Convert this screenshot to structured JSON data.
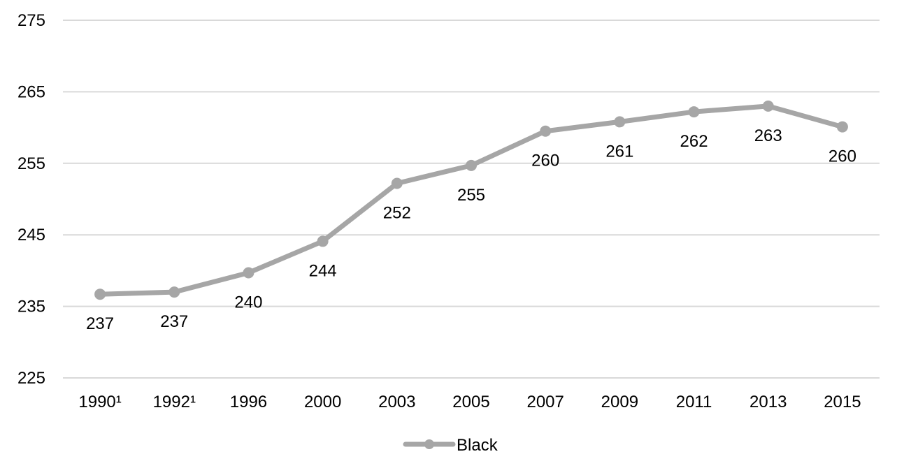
{
  "chart_data": {
    "type": "line",
    "categories": [
      "1990¹",
      "1992¹",
      "1996",
      "2000",
      "2003",
      "2005",
      "2007",
      "2009",
      "2011",
      "2013",
      "2015"
    ],
    "series": [
      {
        "name": "Black",
        "values": [
          236.7,
          237.0,
          239.7,
          244.1,
          252.2,
          254.7,
          259.5,
          260.8,
          262.2,
          263.0,
          260.1
        ],
        "labels": [
          "237",
          "237",
          "240",
          "244",
          "252",
          "255",
          "260",
          "261",
          "262",
          "263",
          "260"
        ],
        "color": "#a6a6a6"
      }
    ],
    "yticks": [
      "225",
      "235",
      "245",
      "255",
      "265",
      "275"
    ],
    "ylim": [
      225,
      275
    ],
    "grid": true,
    "gridline_color": "#d9d9d9",
    "legend_position": "bottom"
  }
}
